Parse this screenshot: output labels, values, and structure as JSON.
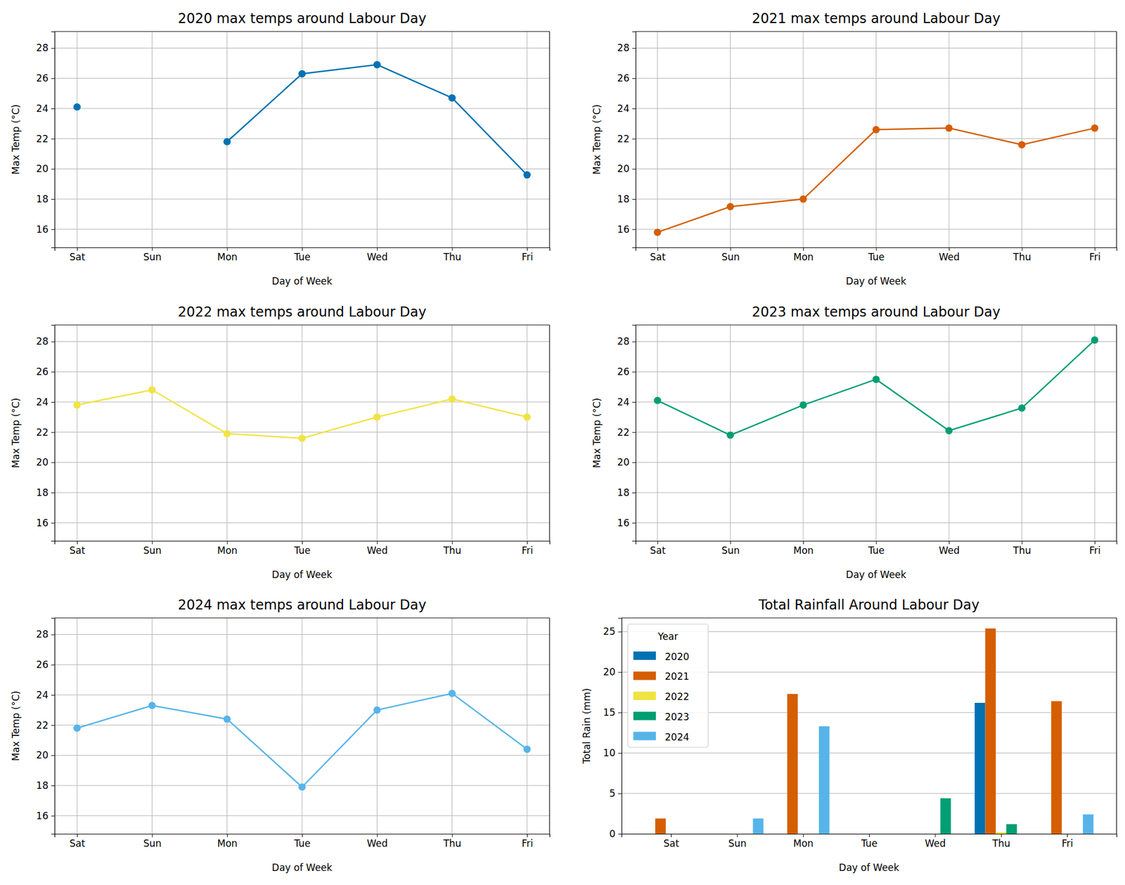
{
  "chart_data": [
    {
      "type": "line",
      "title": "2020 max temps around Labour Day",
      "x_label": "Day of Week",
      "y_label": "Max Temp (°C)",
      "categories": [
        "Sat",
        "Sun",
        "Mon",
        "Tue",
        "Wed",
        "Thu",
        "Fri"
      ],
      "series": [
        {
          "color": "#0072B2",
          "values": [
            24.1,
            null,
            21.8,
            26.3,
            26.9,
            24.7,
            19.6
          ]
        }
      ],
      "ylim": [
        14.8,
        29.1
      ],
      "yticks": [
        16,
        18,
        20,
        22,
        24,
        26,
        28
      ],
      "grid": true,
      "marker": "circle"
    },
    {
      "type": "line",
      "title": "2021 max temps around Labour Day",
      "x_label": "Day of Week",
      "y_label": "Max Temp (°C)",
      "categories": [
        "Sat",
        "Sun",
        "Mon",
        "Tue",
        "Wed",
        "Thu",
        "Fri"
      ],
      "series": [
        {
          "color": "#D55E00",
          "values": [
            15.8,
            17.5,
            18.0,
            22.6,
            22.7,
            21.6,
            22.7
          ]
        }
      ],
      "ylim": [
        14.8,
        29.1
      ],
      "yticks": [
        16,
        18,
        20,
        22,
        24,
        26,
        28
      ],
      "grid": true,
      "marker": "circle"
    },
    {
      "type": "line",
      "title": "2022 max temps around Labour Day",
      "x_label": "Day of Week",
      "y_label": "Max Temp (°C)",
      "categories": [
        "Sat",
        "Sun",
        "Mon",
        "Tue",
        "Wed",
        "Thu",
        "Fri"
      ],
      "series": [
        {
          "color": "#F0E442",
          "values": [
            23.8,
            24.8,
            21.9,
            21.6,
            23.0,
            24.2,
            23.0
          ]
        }
      ],
      "ylim": [
        14.8,
        29.1
      ],
      "yticks": [
        16,
        18,
        20,
        22,
        24,
        26,
        28
      ],
      "grid": true,
      "marker": "circle"
    },
    {
      "type": "line",
      "title": "2023 max temps around Labour Day",
      "x_label": "Day of Week",
      "y_label": "Max Temp (°C)",
      "categories": [
        "Sat",
        "Sun",
        "Mon",
        "Tue",
        "Wed",
        "Thu",
        "Fri"
      ],
      "series": [
        {
          "color": "#009E73",
          "values": [
            24.1,
            21.8,
            23.8,
            25.5,
            22.1,
            23.6,
            28.1
          ]
        }
      ],
      "ylim": [
        14.8,
        29.1
      ],
      "yticks": [
        16,
        18,
        20,
        22,
        24,
        26,
        28
      ],
      "grid": true,
      "marker": "circle"
    },
    {
      "type": "line",
      "title": "2024 max temps around Labour Day",
      "x_label": "Day of Week",
      "y_label": "Max Temp (°C)",
      "categories": [
        "Sat",
        "Sun",
        "Mon",
        "Tue",
        "Wed",
        "Thu",
        "Fri"
      ],
      "series": [
        {
          "color": "#56B4E9",
          "values": [
            21.8,
            23.3,
            22.4,
            17.9,
            23.0,
            24.1,
            20.4
          ]
        }
      ],
      "ylim": [
        14.8,
        29.1
      ],
      "yticks": [
        16,
        18,
        20,
        22,
        24,
        26,
        28
      ],
      "grid": true,
      "marker": "circle"
    },
    {
      "type": "bar",
      "title": "Total Rainfall Around Labour Day",
      "x_label": "Day of Week",
      "y_label": "Total Rain (mm)",
      "categories": [
        "Sat",
        "Sun",
        "Mon",
        "Tue",
        "Wed",
        "Thu",
        "Fri"
      ],
      "series": [
        {
          "name": "2020",
          "color": "#0072B2",
          "values": [
            0,
            0,
            0,
            0,
            0,
            16.2,
            0
          ]
        },
        {
          "name": "2021",
          "color": "#D55E00",
          "values": [
            1.9,
            0,
            17.3,
            0,
            0,
            25.4,
            16.4
          ]
        },
        {
          "name": "2022",
          "color": "#F0E442",
          "values": [
            0,
            0,
            0,
            0,
            0,
            0.2,
            0
          ]
        },
        {
          "name": "2023",
          "color": "#009E73",
          "values": [
            0,
            0,
            0,
            0,
            4.4,
            1.2,
            0
          ]
        },
        {
          "name": "2024",
          "color": "#56B4E9",
          "values": [
            0,
            1.9,
            13.3,
            0,
            0,
            0,
            2.4
          ]
        }
      ],
      "ylim": [
        0,
        26.7
      ],
      "yticks": [
        0,
        5,
        10,
        15,
        20,
        25
      ],
      "grid": true,
      "legend": "upper left",
      "legend_title": "Year"
    }
  ]
}
